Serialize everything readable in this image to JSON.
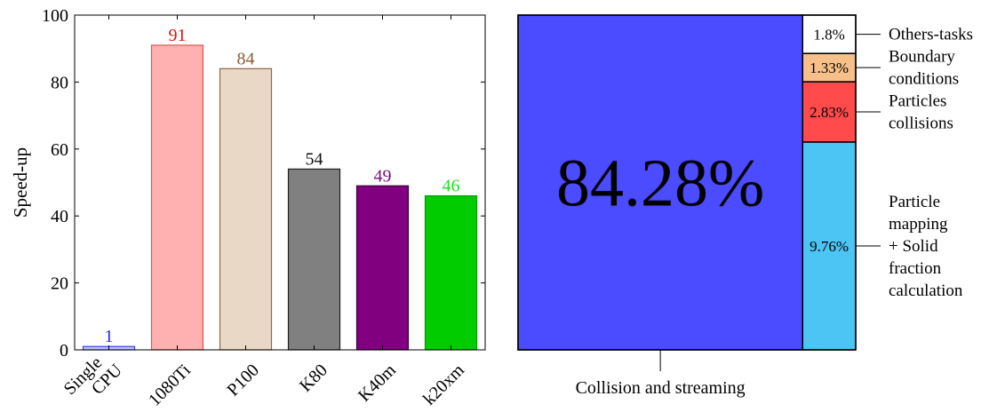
{
  "chart_data": [
    {
      "type": "bar",
      "title": "",
      "xlabel": "",
      "ylabel": "Speed-up",
      "ylim": [
        0,
        100
      ],
      "yticks": [
        0,
        20,
        40,
        60,
        80,
        100
      ],
      "grid": false,
      "categories": [
        "Single CPU",
        "1080Ti",
        "P100",
        "K80",
        "K40m",
        "k20xm"
      ],
      "category_lines": [
        [
          "Single",
          "CPU"
        ],
        [
          "1080Ti"
        ],
        [
          "P100"
        ],
        [
          "K80"
        ],
        [
          "K40m"
        ],
        [
          "k20xm"
        ]
      ],
      "values": [
        1,
        91,
        84,
        54,
        49,
        46
      ],
      "data_labels": [
        "1",
        "91",
        "84",
        "54",
        "49",
        "46"
      ],
      "fill_colors": [
        "#bcc4f8",
        "#ffb1b1",
        "#ead8c6",
        "#808080",
        "#800080",
        "#00cc00"
      ],
      "stroke_colors": [
        "#3f3fe6",
        "#e35050",
        "#8c6a4a",
        "#202020",
        "#3a003a",
        "#00a000"
      ],
      "label_colors": [
        "#2525d8",
        "#e01010",
        "#8c5a33",
        "#111111",
        "#7a0a7a",
        "#22dd22"
      ]
    },
    {
      "type": "treemap",
      "xlabel": "Collision and streaming",
      "segments": [
        {
          "name": "Collision and streaming",
          "value": 84.28,
          "label": "84.28%",
          "color": "#4b4bff"
        },
        {
          "name": "Particle mapping + Solid fraction calculation",
          "value": 9.76,
          "label": "9.76%",
          "color": "#4cc4f4",
          "name_lines": [
            "Particle",
            "mapping",
            "+ Solid",
            "fraction",
            "calculation"
          ]
        },
        {
          "name": "Particles collisions",
          "value": 2.83,
          "label": "2.83%",
          "color": "#ff4b4b",
          "name_lines": [
            "Particles",
            "collisions"
          ]
        },
        {
          "name": "Boundary conditions",
          "value": 1.33,
          "label": "1.33%",
          "color": "#f7c08a",
          "name_lines": [
            "Boundary",
            "conditions"
          ]
        },
        {
          "name": "Others-tasks",
          "value": 1.8,
          "label": "1.8%",
          "color": "#ffffff",
          "name_lines": [
            "Others-tasks"
          ]
        }
      ]
    }
  ]
}
